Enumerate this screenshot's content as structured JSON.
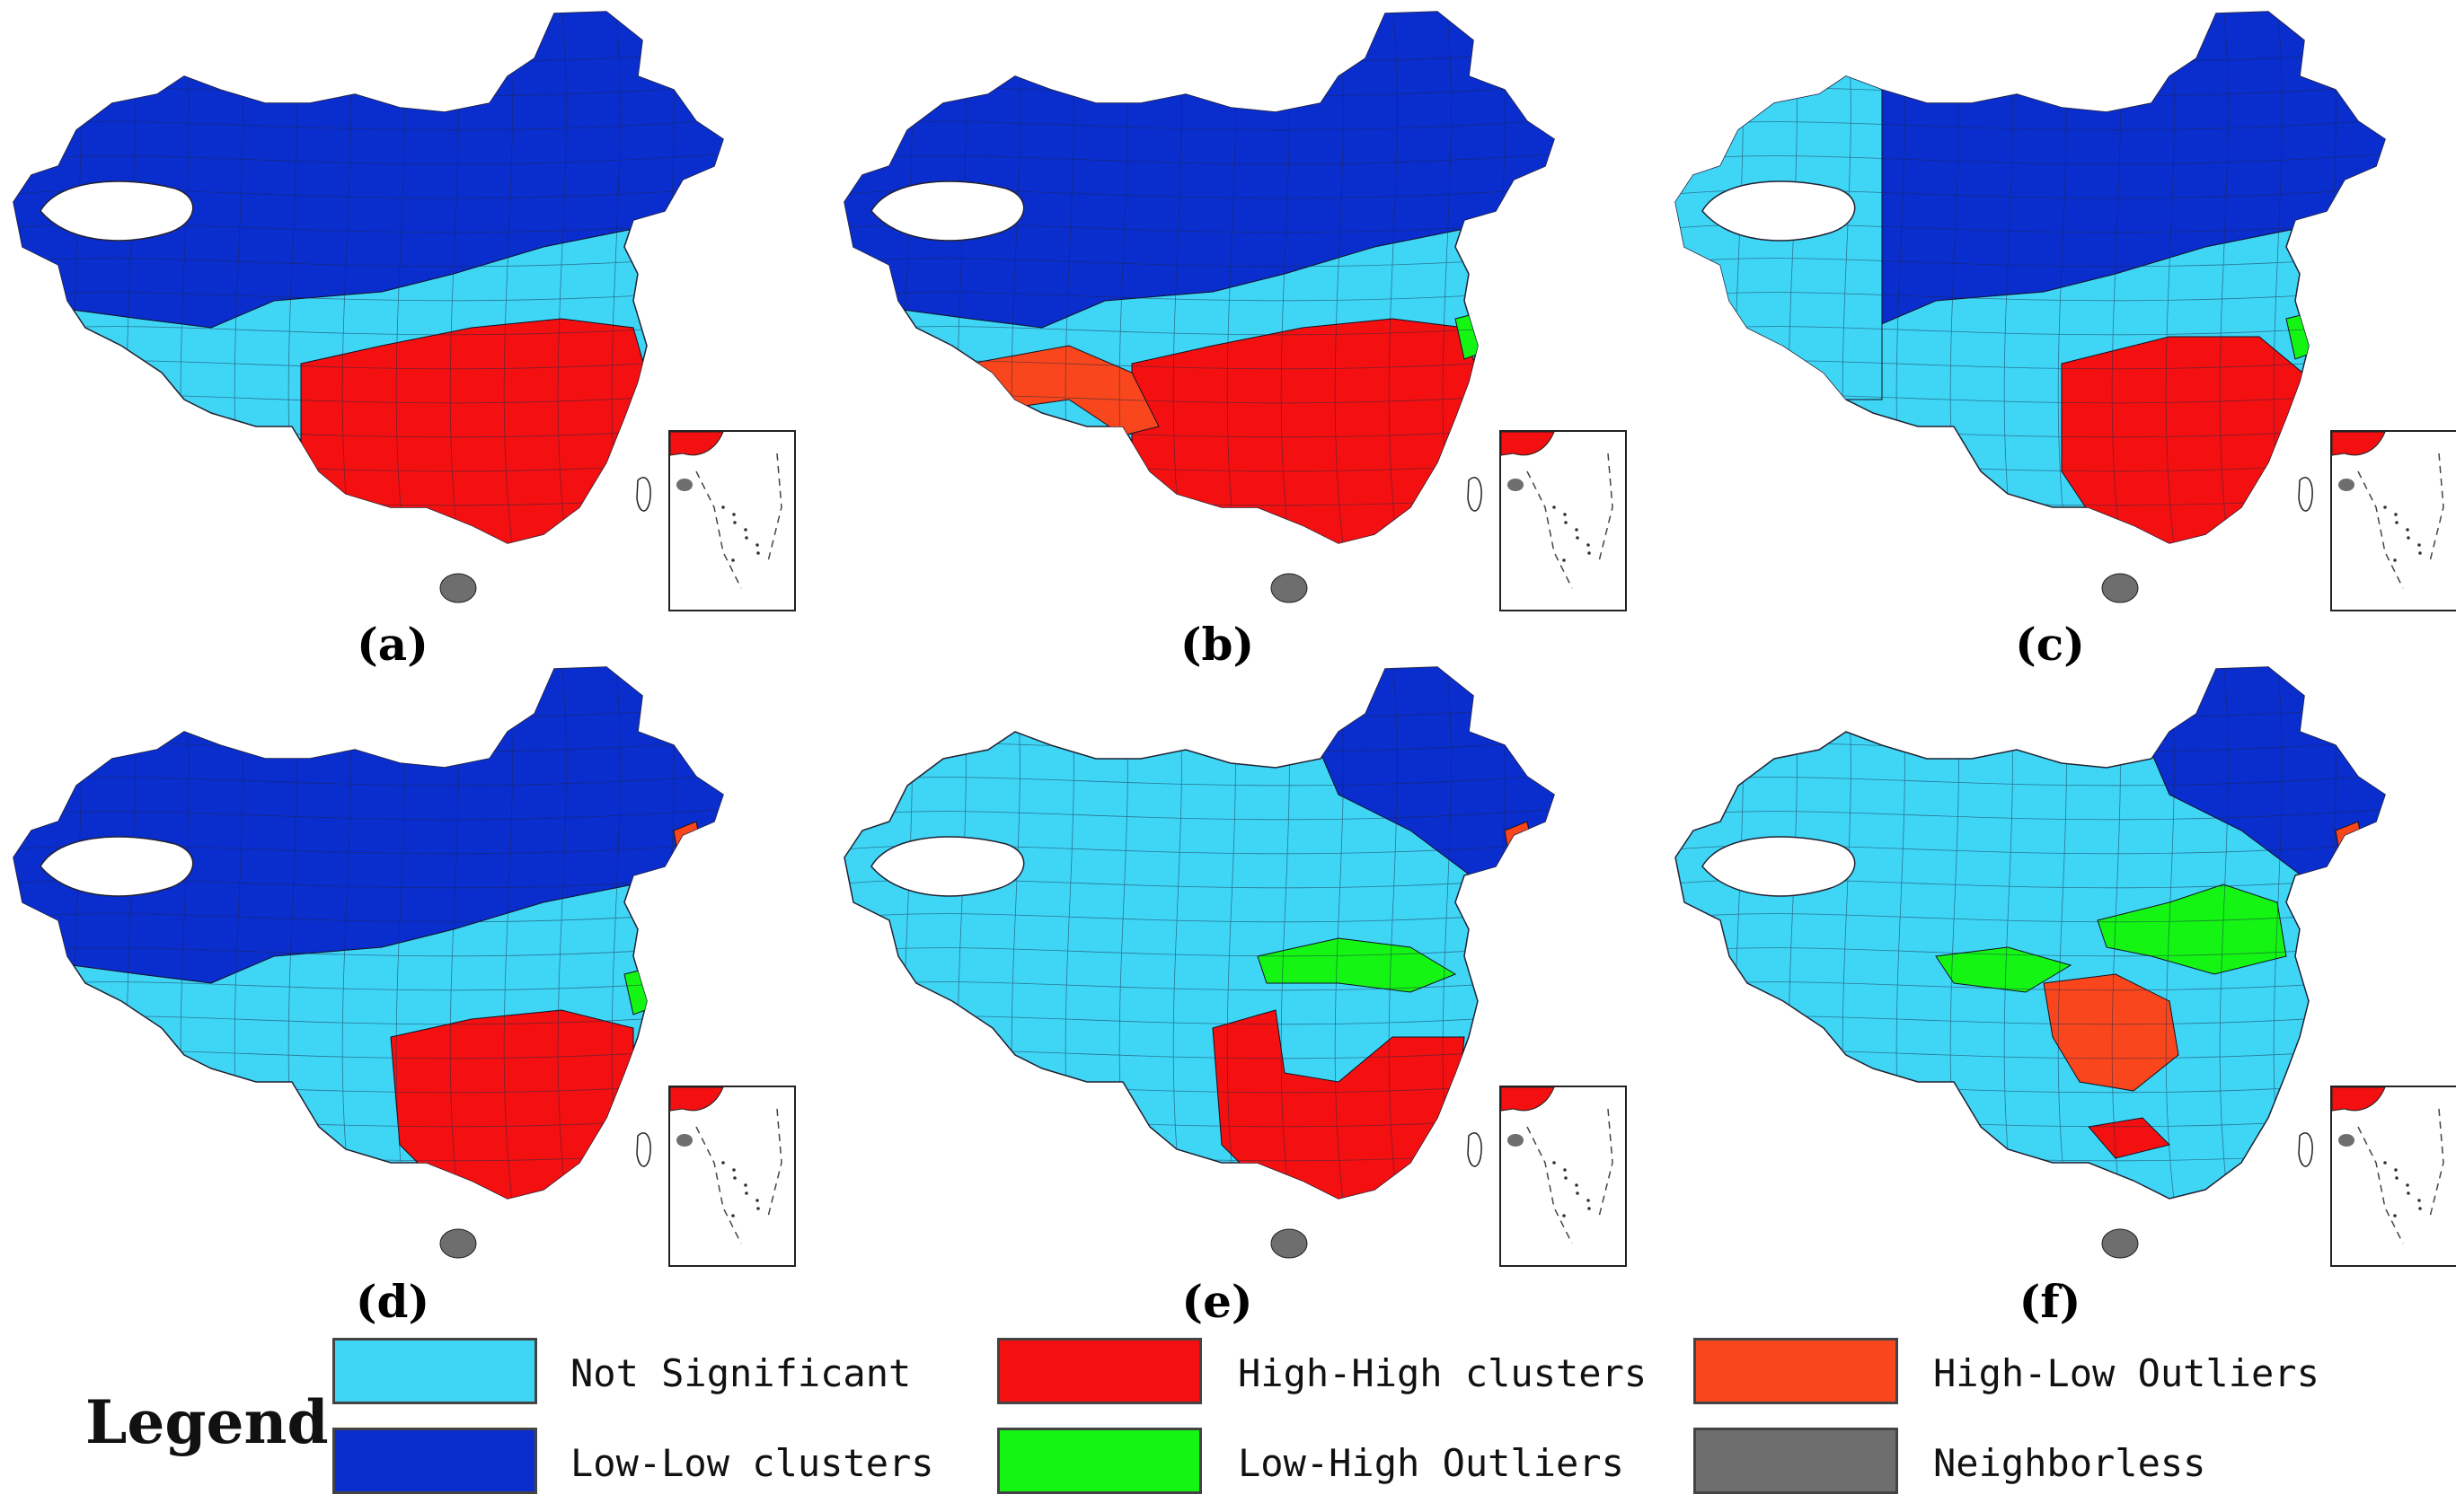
{
  "panels": [
    {
      "label": "(a)"
    },
    {
      "label": "(b)"
    },
    {
      "label": "(c)"
    },
    {
      "label": "(d)"
    },
    {
      "label": "(e)"
    },
    {
      "label": "(f)"
    }
  ],
  "legend": {
    "title": "Legend",
    "items": [
      {
        "label": "Not Significant",
        "color": "#3fd5f5"
      },
      {
        "label": "Low-Low clusters",
        "color": "#0a2dce"
      },
      {
        "label": "High-High clusters",
        "color": "#f41010"
      },
      {
        "label": "Low-High Outliers",
        "color": "#14f514"
      },
      {
        "label": "High-Low Outliers",
        "color": "#f9461c"
      },
      {
        "label": "Neighborless",
        "color": "#6e6e6e"
      }
    ]
  }
}
